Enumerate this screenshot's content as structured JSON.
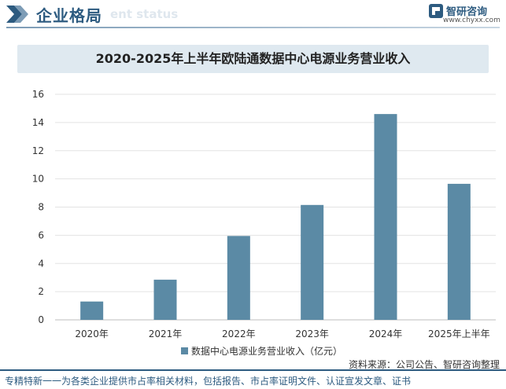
{
  "header": {
    "title": "企业格局",
    "subtitle": "ent status",
    "brand_name": "智研咨询",
    "brand_url": "www.chyxx.com"
  },
  "chart_data": {
    "type": "bar",
    "title": "2020-2025年上半年欧陆通数据中心电源业务营业收入",
    "categories": [
      "2020年",
      "2021年",
      "2022年",
      "2023年",
      "2024年",
      "2025年上半年"
    ],
    "series": [
      {
        "name": "数据中心电源业务营业收入（亿元）",
        "values": [
          1.3,
          2.85,
          5.95,
          8.15,
          14.6,
          9.65
        ]
      }
    ],
    "ylim": [
      0,
      16
    ],
    "yticks": [
      0,
      2,
      4,
      6,
      8,
      10,
      12,
      14,
      16
    ],
    "grid": true,
    "legend_position": "bottom",
    "bar_color": "#5b8aa5"
  },
  "footer": {
    "source": "资料来源：公司公告、智研咨询整理",
    "text": "专精特新一一为各类企业提供市占率相关材料，包括报告、市占率证明文件、认证宣发文章、证书"
  }
}
